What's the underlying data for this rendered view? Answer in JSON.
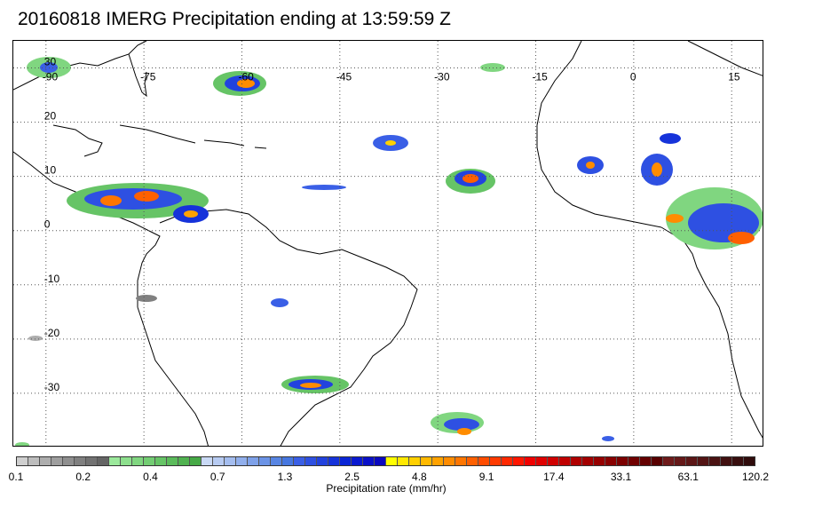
{
  "title": "20160818 IMERG Precipitation ending at 13:59:59 Z",
  "map": {
    "lon_range": [
      -95,
      20
    ],
    "lat_range": [
      -40,
      35
    ],
    "lon_labels": [
      "-90",
      "-75",
      "-60",
      "-45",
      "-30",
      "-15",
      "0",
      "15"
    ],
    "lat_labels": [
      "30",
      "20",
      "10",
      "0",
      "-10",
      "-20",
      "-30"
    ],
    "gridlines": "dotted"
  },
  "colorbar": {
    "label": "Precipitation rate (mm/hr)",
    "tick_labels": [
      "0.1",
      "0.2",
      "0.4",
      "0.7",
      "1.3",
      "2.5",
      "4.8",
      "9.1",
      "17.4",
      "33.1",
      "63.1",
      "120.2"
    ],
    "colors": [
      "#cfcfcf",
      "#bdbdbd",
      "#adadad",
      "#9e9e9e",
      "#8f8f8f",
      "#808080",
      "#727272",
      "#656565",
      "#9be89b",
      "#8ddf8d",
      "#80d680",
      "#73cd73",
      "#66c466",
      "#5bbb5b",
      "#50b250",
      "#46a946",
      "#c9d9f5",
      "#b7cbf2",
      "#a4bdef",
      "#91afec",
      "#7ea1e9",
      "#6b93e6",
      "#5885e3",
      "#4677e0",
      "#3a5fe6",
      "#2e50e2",
      "#2242de",
      "#1633da",
      "#0a25d6",
      "#0a1ad0",
      "#0a10c8",
      "#0a08bf",
      "#ffff00",
      "#ffe800",
      "#ffd000",
      "#ffb900",
      "#ffa200",
      "#ff8c00",
      "#ff7600",
      "#ff6000",
      "#ff4c00",
      "#ff3a00",
      "#ff2800",
      "#ff1600",
      "#f00000",
      "#e00000",
      "#d00000",
      "#c00000",
      "#b00000",
      "#a30000",
      "#960000",
      "#890000",
      "#7c0000",
      "#700000",
      "#640000",
      "#580000",
      "#6e1a1a",
      "#651818",
      "#5c1616",
      "#531414",
      "#4a1212",
      "#411010",
      "#380e0e",
      "#300c0c"
    ]
  }
}
